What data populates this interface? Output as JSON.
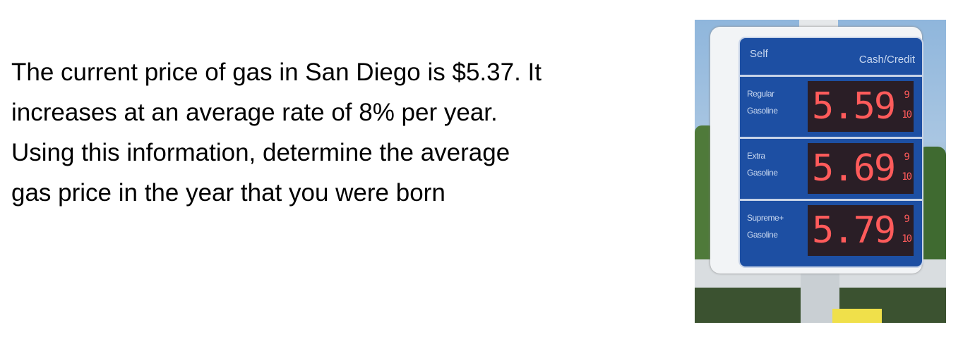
{
  "prompt": {
    "lines": [
      "The current price of gas in San Diego is $5.37.  It",
      "increases at an average rate of 8% per year.",
      "Using this information, determine the average",
      "gas price in the year that you were born"
    ]
  },
  "sign": {
    "header_left": "Self",
    "header_right": "Cash/Credit",
    "rows": [
      {
        "label1": "Regular",
        "label2": "Gasoline",
        "price": "5.59",
        "frac_top": "9",
        "frac_bottom": "10"
      },
      {
        "label1": "Extra",
        "label2": "Gasoline",
        "price": "5.69",
        "frac_top": "9",
        "frac_bottom": "10"
      },
      {
        "label1": "Supreme+",
        "label2": "Gasoline",
        "price": "5.79",
        "frac_top": "9",
        "frac_bottom": "10"
      }
    ],
    "colors": {
      "panel": "#1d4fa3",
      "digits": "#ff5b5b"
    }
  }
}
